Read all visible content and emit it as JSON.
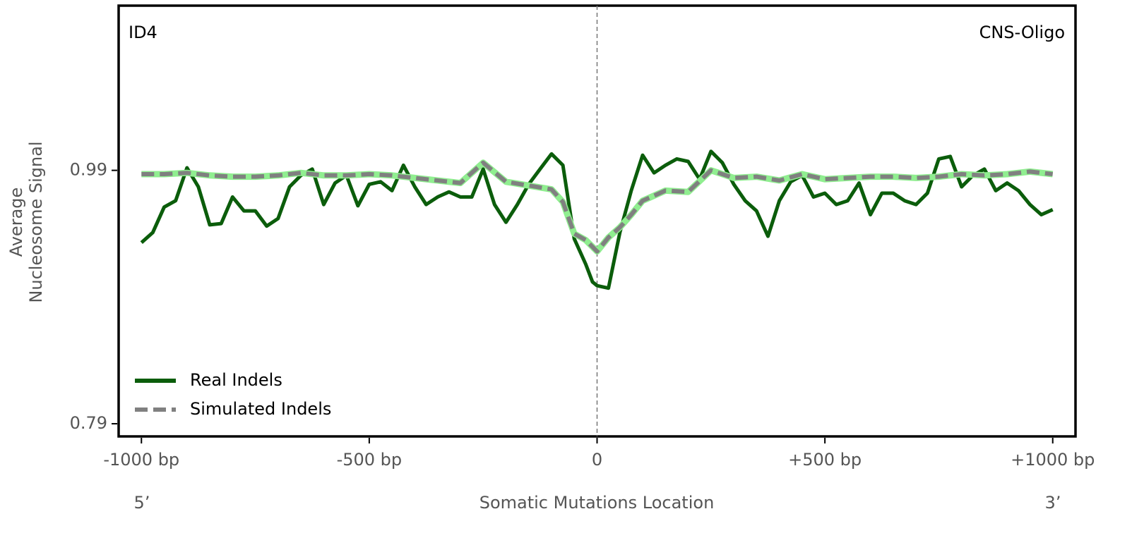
{
  "chart_data": {
    "type": "line",
    "annotations": {
      "left": "ID4",
      "right": "CNS-Oligo",
      "x_start": "5’",
      "x_end": "3’"
    },
    "xlabel": "Somatic Mutations Location",
    "ylabel": [
      "Average",
      "Nucleosome Signal"
    ],
    "xlim": [
      -1050,
      1050
    ],
    "ylim": [
      0.78,
      1.12
    ],
    "xticks": [
      {
        "value": -1000,
        "label": "-1000 bp"
      },
      {
        "value": -500,
        "label": "-500 bp"
      },
      0,
      {
        "value": 500,
        "label": "+500 bp"
      },
      {
        "value": 1000,
        "label": "+1000 bp"
      }
    ],
    "yticks": [
      0.79,
      0.99
    ],
    "vline": 0,
    "legend": "lower left",
    "series": [
      {
        "name": "Real Indels",
        "color": "#0b5d0b",
        "style": "solid",
        "x": [
          -1000,
          -975,
          -950,
          -925,
          -900,
          -875,
          -850,
          -825,
          -800,
          -775,
          -750,
          -725,
          -700,
          -675,
          -650,
          -625,
          -600,
          -575,
          -550,
          -525,
          -500,
          -475,
          -450,
          -425,
          -400,
          -375,
          -350,
          -325,
          -300,
          -275,
          -250,
          -225,
          -200,
          -175,
          -150,
          -125,
          -100,
          -75,
          -50,
          -25,
          -10,
          0,
          25,
          50,
          75,
          100,
          125,
          150,
          175,
          200,
          225,
          250,
          275,
          300,
          325,
          350,
          375,
          400,
          425,
          450,
          475,
          500,
          525,
          550,
          575,
          600,
          625,
          650,
          675,
          700,
          725,
          750,
          775,
          800,
          825,
          850,
          875,
          900,
          925,
          950,
          975,
          1000
        ],
        "values": [
          0.933,
          0.941,
          0.961,
          0.966,
          0.992,
          0.977,
          0.947,
          0.948,
          0.969,
          0.958,
          0.958,
          0.946,
          0.952,
          0.977,
          0.986,
          0.991,
          0.963,
          0.98,
          0.986,
          0.962,
          0.979,
          0.981,
          0.974,
          0.994,
          0.977,
          0.963,
          0.969,
          0.973,
          0.969,
          0.969,
          0.991,
          0.963,
          0.949,
          0.963,
          0.979,
          0.991,
          1.003,
          0.994,
          0.936,
          0.916,
          0.902,
          0.899,
          0.897,
          0.941,
          0.974,
          1.002,
          0.988,
          0.994,
          0.999,
          0.997,
          0.983,
          1.005,
          0.996,
          0.979,
          0.966,
          0.958,
          0.938,
          0.966,
          0.981,
          0.986,
          0.969,
          0.972,
          0.963,
          0.966,
          0.98,
          0.955,
          0.972,
          0.972,
          0.966,
          0.963,
          0.972,
          0.999,
          1.001,
          0.977,
          0.986,
          0.991,
          0.974,
          0.98,
          0.974,
          0.963,
          0.955,
          0.959
        ]
      },
      {
        "name": "Simulated Indels",
        "color": "#808080",
        "underlay_color": "#90ee90",
        "style": "dashed",
        "x": [
          -1000,
          -950,
          -900,
          -850,
          -800,
          -750,
          -700,
          -650,
          -600,
          -550,
          -500,
          -450,
          -400,
          -350,
          -300,
          -250,
          -200,
          -150,
          -100,
          -75,
          -50,
          -25,
          0,
          25,
          50,
          75,
          100,
          150,
          200,
          250,
          300,
          350,
          400,
          450,
          500,
          550,
          600,
          650,
          700,
          750,
          800,
          850,
          900,
          950,
          1000
        ],
        "values": [
          0.987,
          0.987,
          0.988,
          0.986,
          0.985,
          0.985,
          0.986,
          0.988,
          0.986,
          0.986,
          0.987,
          0.986,
          0.984,
          0.982,
          0.98,
          0.996,
          0.981,
          0.978,
          0.975,
          0.965,
          0.94,
          0.935,
          0.926,
          0.937,
          0.945,
          0.955,
          0.966,
          0.974,
          0.973,
          0.99,
          0.984,
          0.985,
          0.982,
          0.987,
          0.983,
          0.984,
          0.985,
          0.985,
          0.984,
          0.985,
          0.987,
          0.986,
          0.987,
          0.989,
          0.987
        ]
      }
    ]
  }
}
